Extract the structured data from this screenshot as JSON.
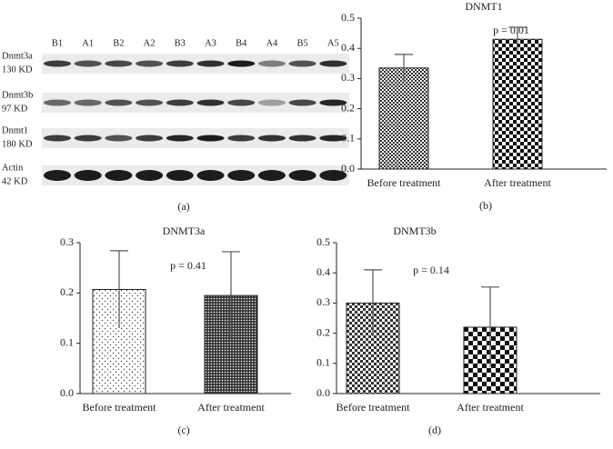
{
  "blot": {
    "lanes": [
      "B1",
      "A1",
      "B2",
      "A2",
      "B3",
      "A3",
      "B4",
      "A4",
      "B5",
      "A5"
    ],
    "rows": [
      {
        "name": "Dnmt3a",
        "size": "130 KD"
      },
      {
        "name": "Dnmt3b",
        "size": "97 KD"
      },
      {
        "name": "Dnmt1",
        "size": "180 KD"
      },
      {
        "name": "Actin",
        "size": "42 KD"
      }
    ],
    "caption": "(a)"
  },
  "chart_data": [
    {
      "type": "bar",
      "title": "DNMT1",
      "caption": "(b)",
      "categories": [
        "Before treatment",
        "After treatment"
      ],
      "values": [
        0.335,
        0.43
      ],
      "errors": [
        0.045,
        0.04
      ],
      "annotation": "p = 0.01",
      "ylim": [
        0,
        0.5
      ],
      "yticks": [
        {
          "value": 0,
          "label": "0.0"
        },
        0.1,
        0.2,
        0.3,
        0.4,
        0.5
      ]
    },
    {
      "type": "bar",
      "title": "DNMT3a",
      "caption": "(c)",
      "categories": [
        "Before treatment",
        "After treatment"
      ],
      "values": [
        0.207,
        0.195
      ],
      "errors": [
        0.077,
        0.087
      ],
      "annotation": "p = 0.41",
      "ylim": [
        0,
        0.3
      ],
      "yticks": [
        {
          "value": 0,
          "label": "0.0"
        },
        0.1,
        0.2,
        0.3
      ]
    },
    {
      "type": "bar",
      "title": "DNMT3b",
      "caption": "(d)",
      "categories": [
        "Before treatment",
        "After treatment"
      ],
      "values": [
        0.3,
        0.22
      ],
      "errors": [
        0.11,
        0.133
      ],
      "annotation": "p = 0.14",
      "ylim": [
        0,
        0.5
      ],
      "yticks": [
        {
          "value": 0,
          "label": "0.0"
        },
        0.1,
        0.2,
        0.3,
        0.4,
        0.5
      ]
    }
  ]
}
